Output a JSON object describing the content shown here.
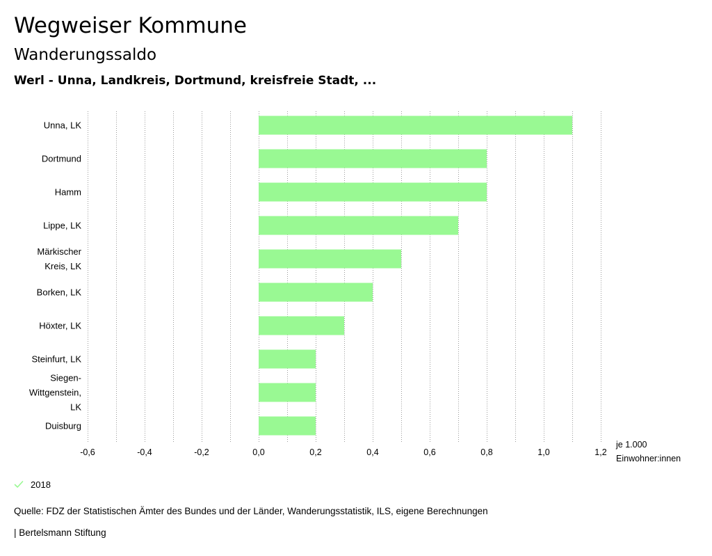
{
  "header": {
    "title": "Wegweiser Kommune",
    "subtitle": "Wanderungssaldo",
    "region": "Werl - Unna, Landkreis, Dortmund, kreisfreie Stadt, ..."
  },
  "chart_data": {
    "type": "bar",
    "orientation": "horizontal",
    "categories": [
      [
        "Unna, LK"
      ],
      [
        "Dortmund"
      ],
      [
        "Hamm"
      ],
      [
        "Lippe, LK"
      ],
      [
        "Märkischer",
        "Kreis, LK"
      ],
      [
        "Borken, LK"
      ],
      [
        "Höxter, LK"
      ],
      [
        "Steinfurt, LK"
      ],
      [
        "Siegen-",
        "Wittgenstein,",
        "LK"
      ],
      [
        "Duisburg"
      ]
    ],
    "series": [
      {
        "name": "2018",
        "values": [
          1.1,
          0.8,
          0.8,
          0.7,
          0.5,
          0.4,
          0.3,
          0.2,
          0.2,
          0.2
        ]
      }
    ],
    "xlim": [
      -0.6,
      1.2
    ],
    "xticks": [
      -0.6,
      -0.4,
      -0.2,
      0.0,
      0.2,
      0.4,
      0.6,
      0.8,
      1.0,
      1.2
    ],
    "xtick_labels": [
      "-0,6",
      "-0,4",
      "-0,2",
      "0,0",
      "0,2",
      "0,4",
      "0,6",
      "0,8",
      "1,0",
      "1,2"
    ],
    "unit_label": [
      "je 1.000",
      "Einwohner:innen"
    ],
    "grid": true,
    "bar_color": "#99f993",
    "legend_position": "bottom-left"
  },
  "legend": {
    "label": "2018",
    "color": "#99f993"
  },
  "footer": {
    "source": "Quelle: FDZ der Statistischen Ämter des Bundes und der Länder, Wanderungsstatistik, ILS, eigene Berechnungen",
    "credit": "| Bertelsmann Stiftung"
  }
}
